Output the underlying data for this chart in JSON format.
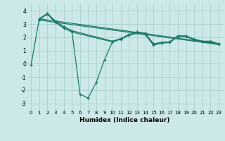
{
  "xlabel": "Humidex (Indice chaleur)",
  "ylabel": "",
  "background_color": "#cce8e8",
  "grid_color": "#aad0d0",
  "line_color": "#1a7a6a",
  "xlim": [
    -0.5,
    23.5
  ],
  "ylim": [
    -3.5,
    4.5
  ],
  "yticks": [
    -3,
    -2,
    -1,
    0,
    1,
    2,
    3,
    4
  ],
  "xticks": [
    0,
    1,
    2,
    3,
    4,
    5,
    6,
    7,
    8,
    9,
    10,
    11,
    12,
    13,
    14,
    15,
    16,
    17,
    18,
    19,
    20,
    21,
    22,
    23
  ],
  "line1_x": [
    0,
    1,
    2,
    3,
    4,
    5,
    6,
    7,
    8,
    9,
    10,
    11,
    12,
    13,
    14,
    15,
    16,
    17,
    18,
    19,
    20,
    21,
    22,
    23
  ],
  "line1_y": [
    -0.1,
    3.4,
    3.8,
    3.2,
    2.8,
    2.5,
    -2.3,
    -2.6,
    -1.4,
    0.3,
    1.7,
    1.9,
    2.2,
    2.4,
    2.3,
    1.5,
    1.6,
    1.65,
    2.1,
    2.1,
    1.85,
    1.7,
    1.7,
    1.5
  ],
  "line2_x": [
    1,
    2,
    3,
    4,
    5,
    10,
    11,
    12,
    13,
    14,
    15,
    16,
    17,
    18,
    19,
    20,
    21,
    22,
    23
  ],
  "line2_y": [
    3.4,
    3.8,
    3.2,
    2.8,
    2.5,
    1.7,
    1.9,
    2.2,
    2.4,
    2.3,
    1.5,
    1.6,
    1.65,
    2.1,
    2.1,
    1.85,
    1.7,
    1.7,
    1.5
  ],
  "line3_x": [
    1,
    2,
    3,
    4,
    5,
    10,
    11,
    12,
    13,
    14,
    15,
    16,
    17,
    18,
    19,
    20,
    21,
    22,
    23
  ],
  "line3_y": [
    3.35,
    3.75,
    3.1,
    2.7,
    2.4,
    1.65,
    1.85,
    2.15,
    2.3,
    2.2,
    1.4,
    1.55,
    1.6,
    2.05,
    2.05,
    1.8,
    1.65,
    1.65,
    1.45
  ],
  "line4_x": [
    1,
    23
  ],
  "line4_y": [
    3.4,
    1.5
  ],
  "line5_x": [
    1,
    23
  ],
  "line5_y": [
    3.3,
    1.45
  ]
}
